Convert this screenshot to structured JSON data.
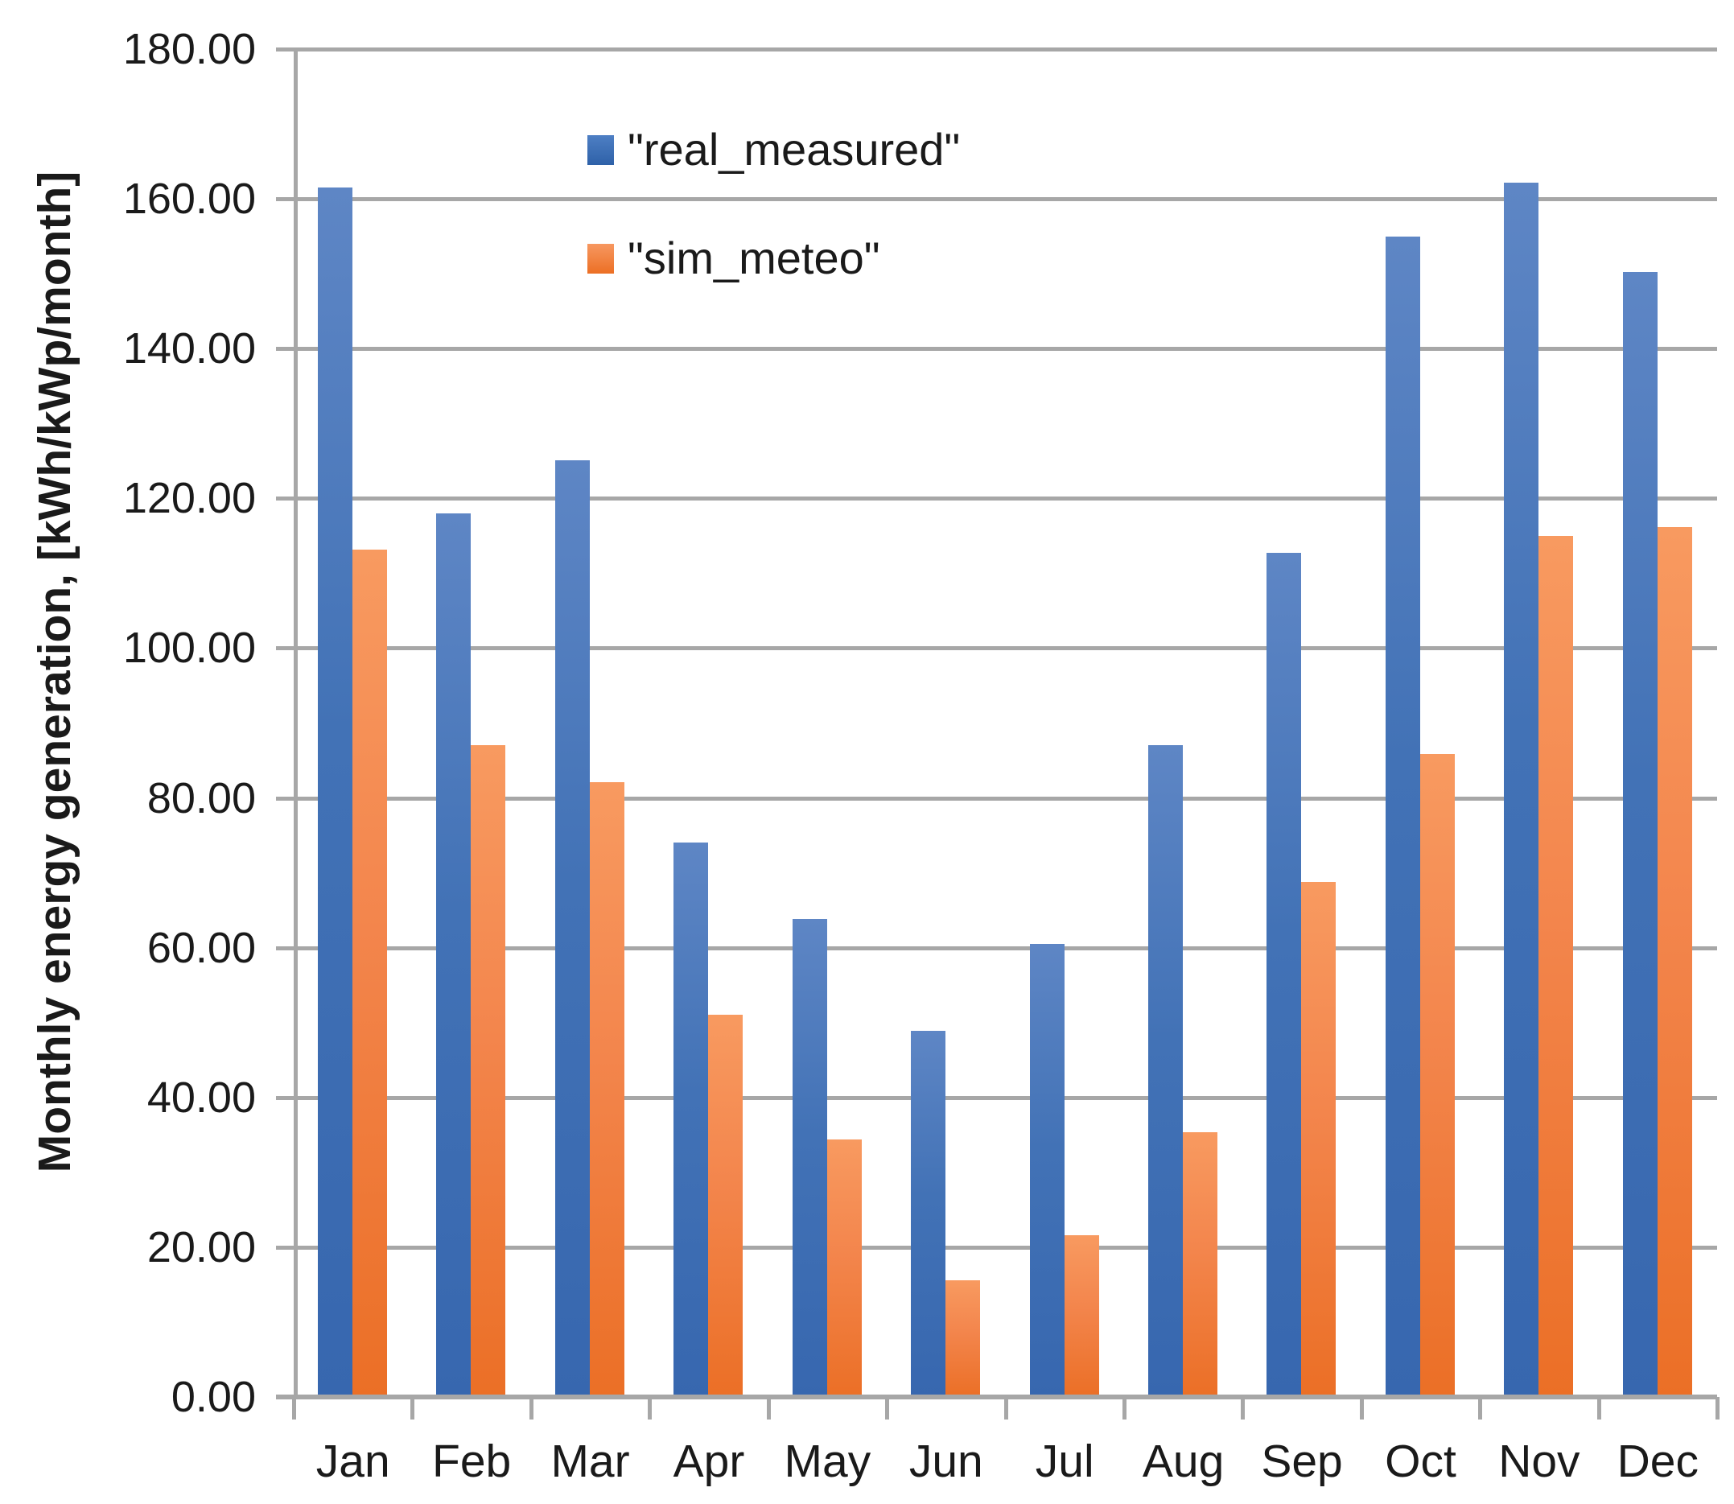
{
  "chart_data": {
    "type": "bar",
    "title": "",
    "ylabel": "Monthly energy generation, [kWh/kWp/month]",
    "xlabel": "",
    "ylim": [
      0,
      180
    ],
    "ytick_step": 20,
    "ytick_labels": [
      "0.00",
      "20.00",
      "40.00",
      "60.00",
      "80.00",
      "100.00",
      "120.00",
      "140.00",
      "160.00",
      "180.00"
    ],
    "grid": "horizontal",
    "legend_position": "top-inside",
    "categories": [
      "Jan",
      "Feb",
      "Mar",
      "Apr",
      "May",
      "Jun",
      "Jul",
      "Aug",
      "Sep",
      "Oct",
      "Nov",
      "Dec"
    ],
    "series": [
      {
        "name": "\"real_measured\"",
        "color": "#4272B6",
        "values": [
          161.5,
          118.0,
          125.1,
          74.0,
          63.8,
          48.9,
          60.5,
          87.0,
          112.7,
          155.0,
          162.2,
          150.2
        ]
      },
      {
        "name": "\"sim_meteo\"",
        "color": "#F3854C",
        "values": [
          113.2,
          87.0,
          82.1,
          51.0,
          34.4,
          15.6,
          21.6,
          35.4,
          68.8,
          85.9,
          115.0,
          116.2
        ]
      }
    ]
  }
}
